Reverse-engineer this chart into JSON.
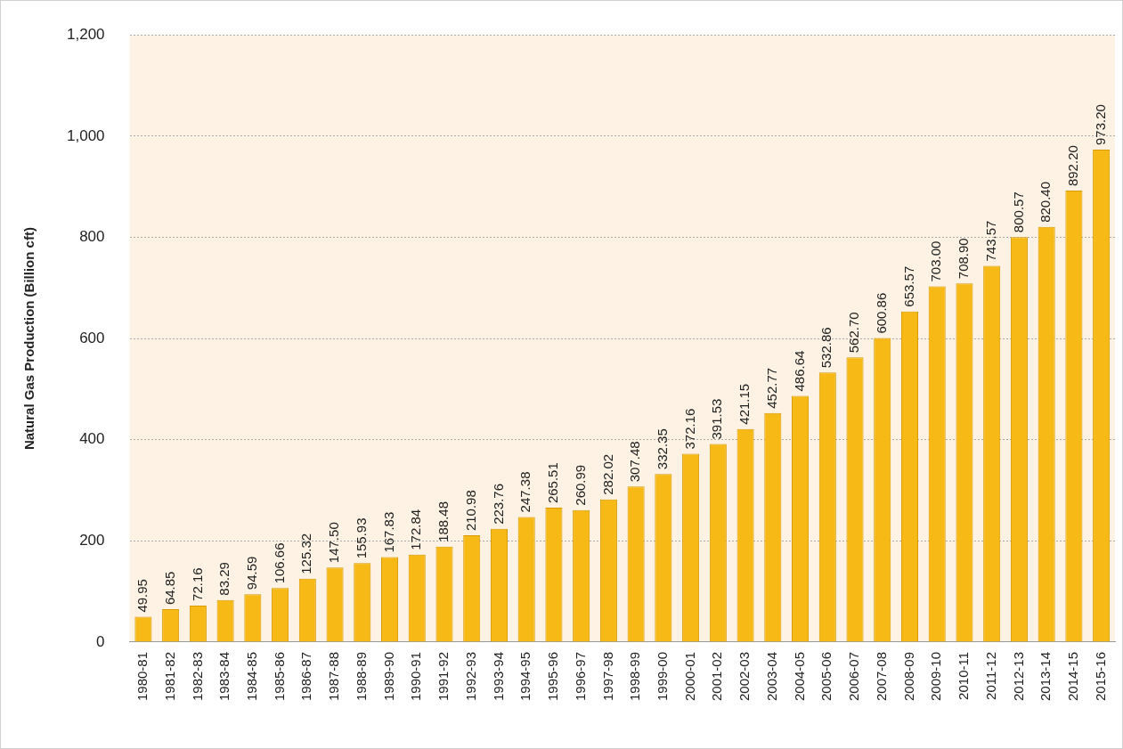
{
  "chart_data": {
    "type": "bar",
    "ylabel": "Natural Gas Production (Billion cft)",
    "categories": [
      "1980-81",
      "1981-82",
      "1982-83",
      "1983-84",
      "1984-85",
      "1985-86",
      "1986-87",
      "1987-88",
      "1988-89",
      "1989-90",
      "1990-91",
      "1991-92",
      "1992-93",
      "1993-94",
      "1994-95",
      "1995-96",
      "1996-97",
      "1997-98",
      "1998-99",
      "1999-00",
      "2000-01",
      "2001-02",
      "2002-03",
      "2003-04",
      "2004-05",
      "2005-06",
      "2006-07",
      "2007-08",
      "2008-09",
      "2009-10",
      "2010-11",
      "2011-12",
      "2012-13",
      "2013-14",
      "2014-15",
      "2015-16"
    ],
    "values": [
      49.95,
      64.85,
      72.16,
      83.29,
      94.59,
      106.66,
      125.32,
      147.5,
      155.93,
      167.83,
      172.84,
      188.48,
      210.98,
      223.76,
      247.38,
      265.51,
      260.99,
      282.02,
      307.48,
      332.35,
      372.16,
      391.53,
      421.15,
      452.77,
      486.64,
      532.86,
      562.7,
      600.86,
      653.57,
      703.0,
      708.9,
      743.57,
      800.57,
      820.4,
      892.2,
      973.2
    ],
    "value_labels": [
      "49.95",
      "64.85",
      "72.16",
      "83.29",
      "94.59",
      "106.66",
      "125.32",
      "147.50",
      "155.93",
      "167.83",
      "172.84",
      "188.48",
      "210.98",
      "223.76",
      "247.38",
      "265.51",
      "260.99",
      "282.02",
      "307.48",
      "332.35",
      "372.16",
      "391.53",
      "421.15",
      "452.77",
      "486.64",
      "532.86",
      "562.70",
      "600.86",
      "653.57",
      "703.00",
      "708.90",
      "743.57",
      "800.57",
      "820.40",
      "892.20",
      "973.20"
    ],
    "color": "#f7b916",
    "ylim": [
      0,
      1200
    ],
    "yticks": [
      {
        "value": 0,
        "label": "0"
      },
      {
        "value": 200,
        "label": "200"
      },
      {
        "value": 400,
        "label": "400"
      },
      {
        "value": 600,
        "label": "600"
      },
      {
        "value": 800,
        "label": "800"
      },
      {
        "value": 1000,
        "label": "1,000"
      },
      {
        "value": 1200,
        "label": "1,200"
      }
    ],
    "grid": "y",
    "legend": false
  }
}
